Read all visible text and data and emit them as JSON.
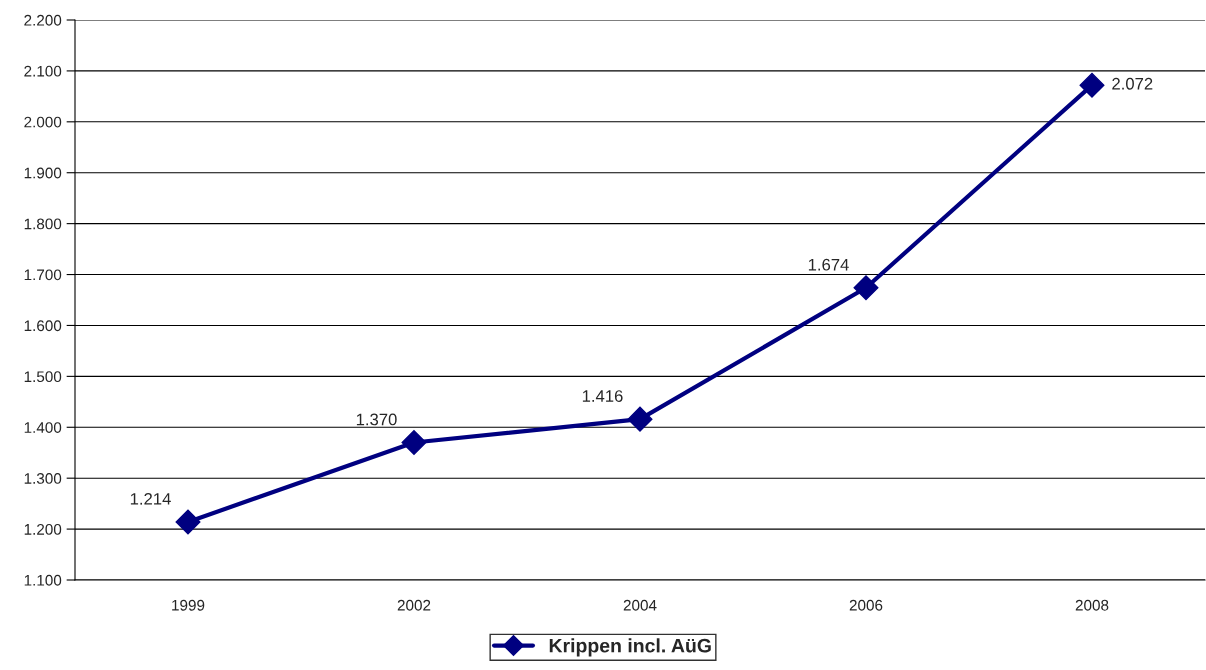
{
  "chart_data": {
    "type": "line",
    "categories": [
      "1999",
      "2002",
      "2004",
      "2006",
      "2008"
    ],
    "series": [
      {
        "name": "Krippen incl. AüG",
        "color": "#000080",
        "values": [
          1214,
          1370,
          1416,
          1674,
          2072
        ],
        "value_labels": [
          "1.214",
          "1.370",
          "1.416",
          "1.674",
          "2.072"
        ]
      }
    ],
    "ylim": [
      1100,
      2200
    ],
    "yticks": [
      {
        "value": 1100,
        "label": "1.100"
      },
      {
        "value": 1200,
        "label": "1.200"
      },
      {
        "value": 1300,
        "label": "1.300"
      },
      {
        "value": 1400,
        "label": "1.400"
      },
      {
        "value": 1500,
        "label": "1.500"
      },
      {
        "value": 1600,
        "label": "1.600"
      },
      {
        "value": 1700,
        "label": "1.700"
      },
      {
        "value": 1800,
        "label": "1.800"
      },
      {
        "value": 1900,
        "label": "1.900"
      },
      {
        "value": 2000,
        "label": "2.000"
      },
      {
        "value": 2100,
        "label": "2.100"
      },
      {
        "value": 2200,
        "label": "2.200"
      }
    ],
    "grid": "y",
    "legend": "bottom",
    "marker": "diamond",
    "line_style": "solid"
  }
}
